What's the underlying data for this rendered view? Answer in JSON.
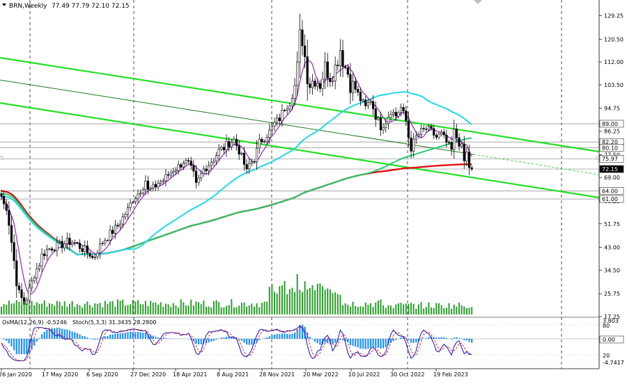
{
  "header": {
    "symbol": "BRN,Weekly",
    "ohlc": "77.49 77.79 72.10 72.15"
  },
  "osc_header": {
    "osma": "OsMA(12,26,9) -0.5246",
    "stoch": "Stoch(5,3,3) 31.3435 28.2800"
  },
  "colors": {
    "background": "#ffffff",
    "candle": "#000000",
    "volume": "#2a9d2a",
    "ma_fast": "#9b30c8",
    "ma_mid": "#20d8e8",
    "ma_slow": "#20d070",
    "ma_long": "#e01010",
    "channel": "#22e022",
    "osma": "#1e90ff",
    "stoch_main": "#1010c0",
    "stoch_signal": "#e01010"
  },
  "chart_data": {
    "type": "candlestick",
    "title": "BRN,Weekly",
    "timeframe": "Weekly",
    "ylim": [
      17.25,
      133
    ],
    "y_ticks": [
      129.25,
      120.5,
      112.0,
      103.5,
      94.75,
      86.25,
      77.5,
      69.0,
      60.25,
      51.75,
      43.0,
      34.5,
      25.75,
      17.25
    ],
    "price_tags": [
      {
        "value": 89.0,
        "text": "89.00",
        "style": "box"
      },
      {
        "value": 86.25,
        "text": "86.25",
        "style": "label"
      },
      {
        "value": 82.2,
        "text": "82.20",
        "style": "box"
      },
      {
        "value": 80.1,
        "text": "80.10",
        "style": "box"
      },
      {
        "value": 77.5,
        "text": "77.50",
        "style": "label"
      },
      {
        "value": 75.97,
        "text": "75.97",
        "style": "box"
      },
      {
        "value": 72.15,
        "text": "72.15",
        "style": "current"
      },
      {
        "value": 69.0,
        "text": "69.00",
        "style": "label"
      },
      {
        "value": 64.0,
        "text": "64.00",
        "style": "box"
      },
      {
        "value": 61.0,
        "text": "61.00",
        "style": "box"
      }
    ],
    "x_labels": [
      "26 Jan 2020",
      "17 May 2020",
      "6 Sep 2020",
      "27 Dec 2020",
      "18 Apr 2021",
      "8 Aug 2021",
      "28 Nov 2021",
      "20 Mar 2022",
      "10 Jul 2022",
      "30 Oct 2022",
      "19 Feb 2023"
    ],
    "price_path": [
      [
        0,
        60
      ],
      [
        2,
        58
      ],
      [
        3,
        52
      ],
      [
        4,
        45
      ],
      [
        5,
        38
      ],
      [
        6,
        30
      ],
      [
        7,
        26
      ],
      [
        8,
        24
      ],
      [
        9,
        22
      ],
      [
        10,
        24
      ],
      [
        11,
        27
      ],
      [
        12,
        30
      ],
      [
        13,
        33
      ],
      [
        14,
        35
      ],
      [
        15,
        37
      ],
      [
        16,
        40
      ],
      [
        18,
        42
      ],
      [
        20,
        43
      ],
      [
        22,
        43.5
      ],
      [
        24,
        44
      ],
      [
        26,
        45
      ],
      [
        28,
        45
      ],
      [
        30,
        44
      ],
      [
        32,
        42.5
      ],
      [
        33,
        42
      ],
      [
        34,
        41
      ],
      [
        35,
        40.5
      ],
      [
        36,
        39
      ],
      [
        37,
        40
      ],
      [
        38,
        42
      ],
      [
        40,
        45
      ],
      [
        42,
        47
      ],
      [
        44,
        49
      ],
      [
        46,
        51
      ],
      [
        48,
        54
      ],
      [
        50,
        57
      ],
      [
        52,
        61
      ],
      [
        54,
        63
      ],
      [
        56,
        66
      ],
      [
        57,
        68
      ],
      [
        58,
        64
      ],
      [
        60,
        65
      ],
      [
        62,
        67
      ],
      [
        64,
        68
      ],
      [
        66,
        70
      ],
      [
        68,
        72
      ],
      [
        70,
        73
      ],
      [
        72,
        75
      ],
      [
        74,
        74
      ],
      [
        76,
        70
      ],
      [
        77,
        66
      ],
      [
        78,
        68
      ],
      [
        80,
        72
      ],
      [
        82,
        74
      ],
      [
        84,
        76
      ],
      [
        86,
        79
      ],
      [
        88,
        80
      ],
      [
        90,
        82
      ],
      [
        92,
        83
      ],
      [
        94,
        79
      ],
      [
        96,
        74
      ],
      [
        97,
        71
      ],
      [
        98,
        74
      ],
      [
        100,
        76
      ],
      [
        102,
        82
      ],
      [
        104,
        84
      ],
      [
        106,
        86
      ],
      [
        108,
        89
      ],
      [
        110,
        91
      ],
      [
        112,
        95
      ],
      [
        114,
        97
      ],
      [
        116,
        103
      ],
      [
        117,
        108
      ],
      [
        118,
        115
      ],
      [
        119,
        120
      ],
      [
        120,
        114
      ],
      [
        121,
        107
      ],
      [
        122,
        104
      ],
      [
        124,
        106
      ],
      [
        126,
        104
      ],
      [
        128,
        110
      ],
      [
        130,
        107
      ],
      [
        132,
        110
      ],
      [
        134,
        117
      ],
      [
        135,
        113
      ],
      [
        136,
        110
      ],
      [
        137,
        108
      ],
      [
        138,
        104
      ],
      [
        140,
        102
      ],
      [
        142,
        98
      ],
      [
        144,
        95
      ],
      [
        146,
        98
      ],
      [
        148,
        92
      ],
      [
        150,
        88
      ],
      [
        152,
        90
      ],
      [
        154,
        94
      ],
      [
        156,
        92
      ],
      [
        158,
        95
      ],
      [
        160,
        90
      ],
      [
        161,
        84
      ],
      [
        162,
        80
      ],
      [
        164,
        84
      ],
      [
        166,
        86
      ],
      [
        168,
        87
      ],
      [
        170,
        86
      ],
      [
        172,
        84
      ],
      [
        174,
        85
      ],
      [
        176,
        82
      ],
      [
        178,
        79
      ],
      [
        179,
        86
      ],
      [
        180,
        84
      ],
      [
        182,
        80
      ],
      [
        183,
        75
      ],
      [
        184,
        78
      ],
      [
        185,
        73
      ],
      [
        186,
        72.15
      ]
    ],
    "series": [
      {
        "type": "candles",
        "color": "#000000"
      },
      {
        "type": "volume",
        "color": "#2a9d2a"
      }
    ],
    "oscillators": {
      "osma_label": "OsMA(12,26,9)",
      "osma_value": -0.5246,
      "stoch_label": "Stoch(5,3,3)",
      "stoch_main": 31.3435,
      "stoch_signal": 28.28,
      "scale_ticks": [
        "3.803",
        "80",
        "0.00",
        "20",
        "-4.7417"
      ]
    }
  }
}
